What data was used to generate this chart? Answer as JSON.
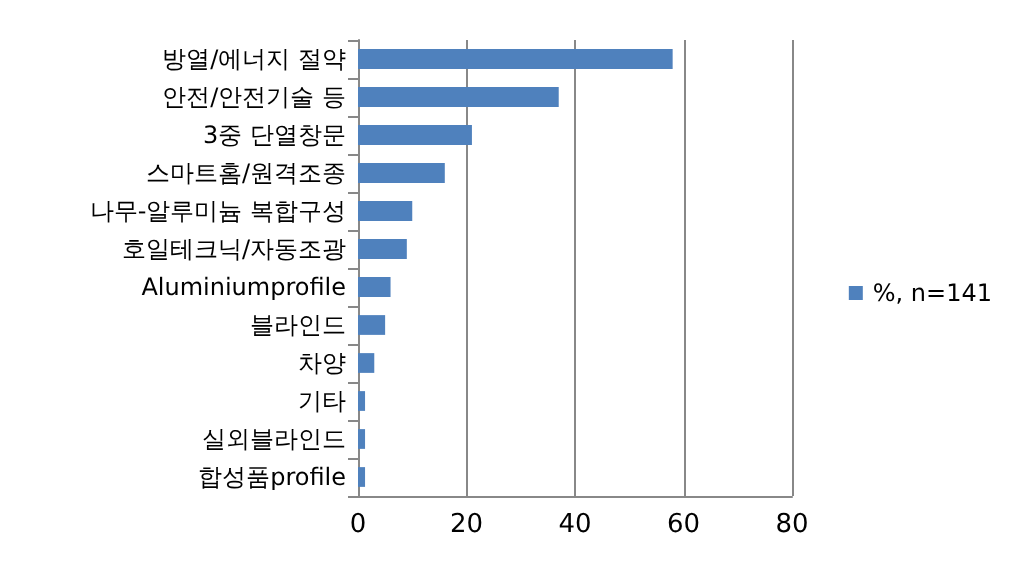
{
  "chart_data": {
    "type": "bar",
    "orientation": "horizontal",
    "categories": [
      "방열/에너지 절약",
      "안전/안전기술 등",
      "3중 단열창문",
      "스마트홈/원격조종",
      "나무-알루미늄 복합구성",
      "호일테크닉/자동조광",
      "Aluminiumprofile",
      "블라인드",
      "차양",
      "기타",
      "실외블라인드",
      "합성품profile"
    ],
    "series": [
      {
        "name": "%, n=141",
        "color": "#4f81bd",
        "values": [
          58,
          37,
          21,
          16,
          10,
          9,
          6,
          5,
          3,
          1.3,
          1.3,
          1.3
        ]
      }
    ],
    "xlim": [
      0,
      80
    ],
    "xticks": [
      0,
      20,
      40,
      60,
      80
    ],
    "grid": "x",
    "legend": "right"
  }
}
